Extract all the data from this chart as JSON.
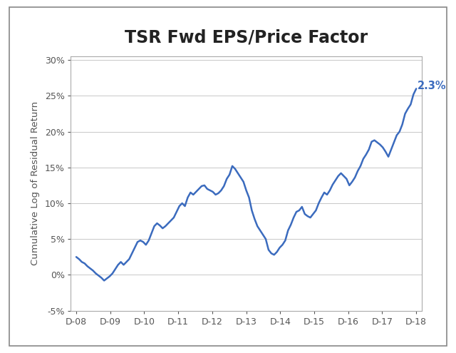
{
  "title": "TSR Fwd EPS/Price Factor",
  "ylabel": "Cumulative Log of Residual Return",
  "line_color": "#3B6BBE",
  "annotation_color": "#3B6BBE",
  "annotation_text": "2.3%",
  "ylim": [
    -0.05,
    0.305
  ],
  "yticks": [
    -0.05,
    0.0,
    0.05,
    0.1,
    0.15,
    0.2,
    0.25,
    0.3
  ],
  "xtick_labels": [
    "D-08",
    "D-09",
    "D-10",
    "D-11",
    "D-12",
    "D-13",
    "D-14",
    "D-15",
    "D-16",
    "D-17",
    "D-18"
  ],
  "background_color": "#ffffff",
  "title_fontsize": 17,
  "label_fontsize": 9.5,
  "tick_fontsize": 9,
  "line_width": 1.8,
  "data_y": [
    0.025,
    0.022,
    0.018,
    0.016,
    0.012,
    0.009,
    0.006,
    0.002,
    -0.001,
    -0.004,
    -0.008,
    -0.005,
    -0.002,
    0.002,
    0.008,
    0.014,
    0.018,
    0.014,
    0.018,
    0.022,
    0.03,
    0.038,
    0.046,
    0.048,
    0.046,
    0.042,
    0.048,
    0.058,
    0.068,
    0.072,
    0.069,
    0.065,
    0.068,
    0.072,
    0.076,
    0.08,
    0.088,
    0.096,
    0.1,
    0.096,
    0.108,
    0.115,
    0.112,
    0.116,
    0.12,
    0.124,
    0.125,
    0.12,
    0.118,
    0.116,
    0.112,
    0.114,
    0.118,
    0.124,
    0.134,
    0.14,
    0.152,
    0.148,
    0.142,
    0.136,
    0.13,
    0.118,
    0.108,
    0.09,
    0.078,
    0.068,
    0.062,
    0.056,
    0.05,
    0.035,
    0.03,
    0.028,
    0.032,
    0.038,
    0.042,
    0.048,
    0.062,
    0.07,
    0.08,
    0.088,
    0.09,
    0.095,
    0.085,
    0.082,
    0.08,
    0.085,
    0.09,
    0.1,
    0.108,
    0.115,
    0.112,
    0.118,
    0.126,
    0.132,
    0.138,
    0.142,
    0.138,
    0.134,
    0.125,
    0.13,
    0.136,
    0.145,
    0.152,
    0.162,
    0.168,
    0.175,
    0.186,
    0.188,
    0.185,
    0.182,
    0.178,
    0.172,
    0.165,
    0.175,
    0.185,
    0.195,
    0.2,
    0.21,
    0.225,
    0.232,
    0.238,
    0.252,
    0.26
  ]
}
